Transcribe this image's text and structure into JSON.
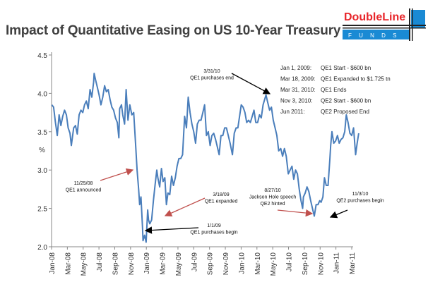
{
  "title": "Impact of Quantitative Easing on US 10-Year Treasury",
  "logo": {
    "brand": "DoubleLine",
    "sub": "F U N D S",
    "colors": {
      "red": "#e8262b",
      "blue": "#1a8ad4",
      "black": "#222222"
    }
  },
  "chart_data": {
    "type": "line",
    "title": "Impact of Quantitative Easing on US 10-Year Treasury",
    "ylabel": "%",
    "xlabel": "",
    "ylim": [
      2.0,
      4.5
    ],
    "yticks": [
      "2.0",
      "2.5",
      "3.0",
      "3.5",
      "4.0",
      "4.5"
    ],
    "xlim": [
      "2008-01-01",
      "2011-03-01"
    ],
    "xticks": [
      "Jan-08",
      "Mar-08",
      "May-08",
      "Jul-08",
      "Sep-08",
      "Nov-08",
      "Jan-09",
      "Mar-09",
      "May-09",
      "Jul-09",
      "Sep-09",
      "Nov-09",
      "Jan-10",
      "Mar-10",
      "May-10",
      "Jul-10",
      "Sep-10",
      "Nov-10",
      "Jan-11",
      "Mar-11"
    ],
    "grid": false,
    "line_color": "#4a7ebb",
    "series": [
      {
        "points": [
          [
            "2008-01-02",
            3.85
          ],
          [
            "2008-01-09",
            3.82
          ],
          [
            "2008-01-16",
            3.62
          ],
          [
            "2008-01-23",
            3.45
          ],
          [
            "2008-01-30",
            3.72
          ],
          [
            "2008-02-06",
            3.58
          ],
          [
            "2008-02-13",
            3.7
          ],
          [
            "2008-02-20",
            3.78
          ],
          [
            "2008-02-27",
            3.72
          ],
          [
            "2008-03-05",
            3.55
          ],
          [
            "2008-03-12",
            3.48
          ],
          [
            "2008-03-17",
            3.32
          ],
          [
            "2008-03-26",
            3.55
          ],
          [
            "2008-04-02",
            3.58
          ],
          [
            "2008-04-09",
            3.47
          ],
          [
            "2008-04-16",
            3.72
          ],
          [
            "2008-04-23",
            3.78
          ],
          [
            "2008-04-30",
            3.75
          ],
          [
            "2008-05-07",
            3.85
          ],
          [
            "2008-05-14",
            3.9
          ],
          [
            "2008-05-21",
            3.8
          ],
          [
            "2008-05-28",
            4.05
          ],
          [
            "2008-06-04",
            3.95
          ],
          [
            "2008-06-11",
            4.15
          ],
          [
            "2008-06-13",
            4.26
          ],
          [
            "2008-06-18",
            4.18
          ],
          [
            "2008-06-25",
            4.08
          ],
          [
            "2008-07-02",
            3.98
          ],
          [
            "2008-07-09",
            3.85
          ],
          [
            "2008-07-16",
            3.95
          ],
          [
            "2008-07-23",
            4.1
          ],
          [
            "2008-07-30",
            4.02
          ],
          [
            "2008-08-06",
            4.05
          ],
          [
            "2008-08-13",
            3.92
          ],
          [
            "2008-08-20",
            3.82
          ],
          [
            "2008-08-27",
            3.78
          ],
          [
            "2008-09-03",
            3.68
          ],
          [
            "2008-09-10",
            3.62
          ],
          [
            "2008-09-16",
            3.42
          ],
          [
            "2008-09-19",
            3.8
          ],
          [
            "2008-09-26",
            3.85
          ],
          [
            "2008-10-01",
            3.72
          ],
          [
            "2008-10-08",
            3.6
          ],
          [
            "2008-10-14",
            4.05
          ],
          [
            "2008-10-21",
            3.65
          ],
          [
            "2008-10-28",
            3.85
          ],
          [
            "2008-11-05",
            3.72
          ],
          [
            "2008-11-12",
            3.75
          ],
          [
            "2008-11-19",
            3.35
          ],
          [
            "2008-11-25",
            3.0
          ],
          [
            "2008-12-01",
            2.75
          ],
          [
            "2008-12-05",
            2.55
          ],
          [
            "2008-12-10",
            2.65
          ],
          [
            "2008-12-16",
            2.25
          ],
          [
            "2008-12-18",
            2.08
          ],
          [
            "2008-12-24",
            2.15
          ],
          [
            "2008-12-30",
            2.06
          ],
          [
            "2009-01-05",
            2.48
          ],
          [
            "2009-01-08",
            2.35
          ],
          [
            "2009-01-13",
            2.3
          ],
          [
            "2009-01-20",
            2.35
          ],
          [
            "2009-01-27",
            2.6
          ],
          [
            "2009-02-02",
            2.8
          ],
          [
            "2009-02-09",
            3.0
          ],
          [
            "2009-02-13",
            2.9
          ],
          [
            "2009-02-20",
            2.78
          ],
          [
            "2009-02-27",
            3.02
          ],
          [
            "2009-03-05",
            2.85
          ],
          [
            "2009-03-12",
            2.9
          ],
          [
            "2009-03-18",
            2.55
          ],
          [
            "2009-03-24",
            2.7
          ],
          [
            "2009-03-31",
            2.68
          ],
          [
            "2009-04-07",
            2.92
          ],
          [
            "2009-04-14",
            2.8
          ],
          [
            "2009-04-21",
            2.9
          ],
          [
            "2009-04-28",
            3.05
          ],
          [
            "2009-05-05",
            3.15
          ],
          [
            "2009-05-12",
            3.15
          ],
          [
            "2009-05-19",
            3.2
          ],
          [
            "2009-05-27",
            3.7
          ],
          [
            "2009-06-03",
            3.55
          ],
          [
            "2009-06-10",
            3.95
          ],
          [
            "2009-06-17",
            3.75
          ],
          [
            "2009-06-24",
            3.6
          ],
          [
            "2009-07-01",
            3.5
          ],
          [
            "2009-07-08",
            3.35
          ],
          [
            "2009-07-15",
            3.6
          ],
          [
            "2009-07-22",
            3.65
          ],
          [
            "2009-07-29",
            3.65
          ],
          [
            "2009-08-05",
            3.75
          ],
          [
            "2009-08-12",
            3.85
          ],
          [
            "2009-08-19",
            3.45
          ],
          [
            "2009-08-26",
            3.5
          ],
          [
            "2009-09-02",
            3.32
          ],
          [
            "2009-09-09",
            3.45
          ],
          [
            "2009-09-16",
            3.48
          ],
          [
            "2009-09-23",
            3.4
          ],
          [
            "2009-09-30",
            3.3
          ],
          [
            "2009-10-07",
            3.2
          ],
          [
            "2009-10-14",
            3.45
          ],
          [
            "2009-10-21",
            3.45
          ],
          [
            "2009-10-28",
            3.55
          ],
          [
            "2009-11-04",
            3.55
          ],
          [
            "2009-11-11",
            3.45
          ],
          [
            "2009-11-18",
            3.35
          ],
          [
            "2009-11-27",
            3.2
          ],
          [
            "2009-12-04",
            3.48
          ],
          [
            "2009-12-11",
            3.55
          ],
          [
            "2009-12-18",
            3.55
          ],
          [
            "2009-12-31",
            3.85
          ],
          [
            "2010-01-07",
            3.82
          ],
          [
            "2010-01-14",
            3.75
          ],
          [
            "2010-01-21",
            3.62
          ],
          [
            "2010-01-28",
            3.65
          ],
          [
            "2010-02-04",
            3.62
          ],
          [
            "2010-02-11",
            3.7
          ],
          [
            "2010-02-18",
            3.78
          ],
          [
            "2010-02-25",
            3.62
          ],
          [
            "2010-03-04",
            3.62
          ],
          [
            "2010-03-11",
            3.72
          ],
          [
            "2010-03-18",
            3.68
          ],
          [
            "2010-03-25",
            3.85
          ],
          [
            "2010-04-05",
            3.98
          ],
          [
            "2010-04-12",
            3.88
          ],
          [
            "2010-04-19",
            3.78
          ],
          [
            "2010-04-26",
            3.82
          ],
          [
            "2010-05-03",
            3.65
          ],
          [
            "2010-05-10",
            3.55
          ],
          [
            "2010-05-17",
            3.45
          ],
          [
            "2010-05-24",
            3.25
          ],
          [
            "2010-06-01",
            3.28
          ],
          [
            "2010-06-08",
            3.18
          ],
          [
            "2010-06-15",
            3.28
          ],
          [
            "2010-06-22",
            3.18
          ],
          [
            "2010-06-30",
            2.95
          ],
          [
            "2010-07-07",
            3.0
          ],
          [
            "2010-07-14",
            3.05
          ],
          [
            "2010-07-21",
            2.88
          ],
          [
            "2010-07-28",
            3.0
          ],
          [
            "2010-08-04",
            2.95
          ],
          [
            "2010-08-11",
            2.75
          ],
          [
            "2010-08-18",
            2.6
          ],
          [
            "2010-08-24",
            2.5
          ],
          [
            "2010-08-27",
            2.65
          ],
          [
            "2010-09-03",
            2.7
          ],
          [
            "2010-09-10",
            2.78
          ],
          [
            "2010-09-17",
            2.72
          ],
          [
            "2010-09-24",
            2.6
          ],
          [
            "2010-10-01",
            2.5
          ],
          [
            "2010-10-08",
            2.4
          ],
          [
            "2010-10-15",
            2.55
          ],
          [
            "2010-10-22",
            2.55
          ],
          [
            "2010-10-29",
            2.6
          ],
          [
            "2010-11-03",
            2.58
          ],
          [
            "2010-11-10",
            2.65
          ],
          [
            "2010-11-16",
            2.9
          ],
          [
            "2010-11-23",
            2.8
          ],
          [
            "2010-11-30",
            2.8
          ],
          [
            "2010-12-07",
            3.15
          ],
          [
            "2010-12-10",
            3.32
          ],
          [
            "2010-12-15",
            3.5
          ],
          [
            "2010-12-22",
            3.35
          ],
          [
            "2010-12-29",
            3.38
          ],
          [
            "2011-01-05",
            3.45
          ],
          [
            "2011-01-12",
            3.35
          ],
          [
            "2011-01-19",
            3.4
          ],
          [
            "2011-01-26",
            3.42
          ],
          [
            "2011-02-02",
            3.5
          ],
          [
            "2011-02-08",
            3.72
          ],
          [
            "2011-02-15",
            3.62
          ],
          [
            "2011-02-22",
            3.48
          ],
          [
            "2011-03-01",
            3.45
          ],
          [
            "2011-03-08",
            3.55
          ],
          [
            "2011-03-16",
            3.2
          ],
          [
            "2011-03-22",
            3.35
          ],
          [
            "2011-03-28",
            3.48
          ]
        ]
      }
    ],
    "annotations": [
      {
        "date": "11/25/08",
        "text": "QE1 announced",
        "color": "#c0504d"
      },
      {
        "date": "3/18/09",
        "text": "QE1 expanded",
        "color": "#c0504d"
      },
      {
        "date": "1/1/09",
        "text": "QE1 purchases begin",
        "color": "#000000"
      },
      {
        "date": "3/31/10",
        "text": "QE1 purchases end",
        "color": "#000000"
      },
      {
        "date": "8/27/10",
        "text": "Jackson Hole speech",
        "text2": "QE2 hinted",
        "color": "#c0504d"
      },
      {
        "date": "11/3/10",
        "text": "QE2 purchases begin",
        "color": "#000000"
      }
    ],
    "legend": [
      {
        "date": "Jan 1, 2009:",
        "event": "QE1 Start - $600 bn"
      },
      {
        "date": "Mar 18, 2009:",
        "event": "QE1 Expanded to $1.725 tn"
      },
      {
        "date": "Mar 31, 2010:",
        "event": "QE1 Ends"
      },
      {
        "date": "Nov 3, 2010:",
        "event": "QE2 Start - $600 bn"
      },
      {
        "date": "Jun 2011:",
        "event": "QE2 Proposed End"
      }
    ]
  }
}
